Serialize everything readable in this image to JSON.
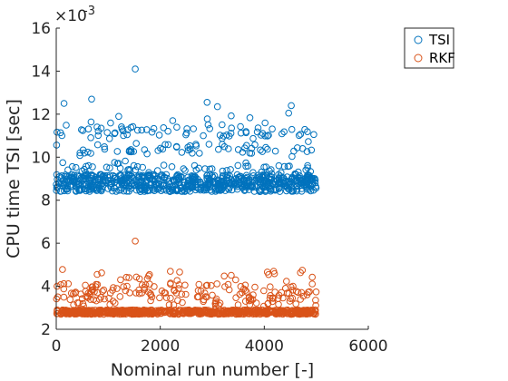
{
  "chart_data": {
    "type": "scatter",
    "xlabel": "Nominal run number [-]",
    "ylabel": "CPU time TSI [sec]",
    "exponent_label": "×10",
    "exponent_power": "-3",
    "xlim": [
      0,
      6000
    ],
    "ylim": [
      2,
      16
    ],
    "y_scale_factor": 0.001,
    "xticks": [
      0,
      2000,
      4000,
      6000
    ],
    "yticks": [
      2,
      4,
      6,
      8,
      10,
      12,
      14,
      16
    ],
    "xtick_labels": [
      "0",
      "2000",
      "4000",
      "6000"
    ],
    "ytick_labels": [
      "2",
      "4",
      "6",
      "8",
      "10",
      "12",
      "14",
      "16"
    ],
    "grid": false,
    "legend_position": "top-right",
    "series": [
      {
        "name": "TSI",
        "color": "#0072BD",
        "marker": "open-circle",
        "n_points": 5000,
        "base_bands": [
          8.4,
          9.2
        ],
        "upper_bands": [
          9.4,
          10.4,
          11.2
        ],
        "outliers": [
          {
            "x": 1520,
            "y": 14.1
          },
          {
            "x": 680,
            "y": 12.7
          },
          {
            "x": 2900,
            "y": 12.55
          },
          {
            "x": 4520,
            "y": 12.4
          },
          {
            "x": 3100,
            "y": 12.35
          },
          {
            "x": 150,
            "y": 12.5
          }
        ]
      },
      {
        "name": "RKF",
        "color": "#D95319",
        "marker": "open-circle",
        "n_points": 5000,
        "base_bands": [
          2.7,
          2.9
        ],
        "upper_bands": [
          3.3,
          3.6,
          3.9
        ],
        "outliers": [
          {
            "x": 1520,
            "y": 6.1
          },
          {
            "x": 4180,
            "y": 4.7
          },
          {
            "x": 1600,
            "y": 4.35
          },
          {
            "x": 560,
            "y": 4.05
          }
        ]
      }
    ]
  }
}
